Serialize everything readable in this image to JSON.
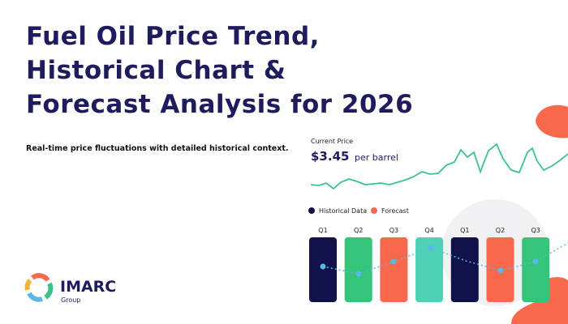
{
  "header": {
    "title_lines": [
      "Fuel Oil Price Trend,",
      "Historical Chart &",
      "Forecast Analysis for 2026"
    ],
    "subtitle": "Real-time price fluctuations with detailed historical context."
  },
  "price_card": {
    "label": "Current Price",
    "price": "$3.45",
    "unit": "per barrel"
  },
  "legend": [
    "Historical Data",
    "Forecast"
  ],
  "quarters": [
    "Q1",
    "Q2",
    "Q3",
    "Q4",
    "Q1",
    "Q2",
    "Q3"
  ],
  "logo": {
    "name": "IMARC",
    "sub": "Group"
  }
}
